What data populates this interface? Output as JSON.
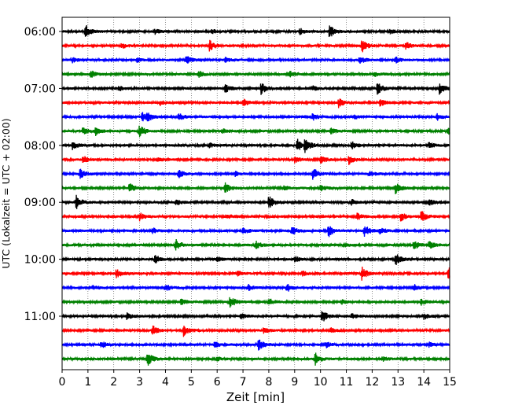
{
  "chart_data": {
    "type": "line",
    "title": "",
    "xlabel": "Zeit  [min]",
    "ylabel": "UTC (Lokalzeit = UTC + 02:00)",
    "xlim": [
      0,
      15
    ],
    "xticks": [
      "0",
      "1",
      "2",
      "3",
      "4",
      "5",
      "6",
      "7",
      "8",
      "9",
      "10",
      "11",
      "12",
      "13",
      "14",
      "15"
    ],
    "yticks": [
      "06:00",
      "07:00",
      "08:00",
      "09:00",
      "10:00",
      "11:00"
    ],
    "grid": "vertical dotted",
    "trace_colors": [
      "#000000",
      "#ff0000",
      "#0000ff",
      "#008000"
    ],
    "traces": [
      {
        "time": "06:00",
        "events": [
          [
            0.9,
            1.0
          ],
          [
            10.35,
            0.9
          ],
          [
            3.6,
            0.3
          ],
          [
            5.8,
            0.3
          ],
          [
            9.2,
            0.4
          ],
          [
            12.7,
            0.3
          ]
        ]
      },
      {
        "time": "06:15",
        "events": [
          [
            5.7,
            0.8
          ],
          [
            11.6,
            0.9
          ],
          [
            2.3,
            0.4
          ],
          [
            13.3,
            0.5
          ]
        ]
      },
      {
        "time": "06:30",
        "events": [
          [
            4.8,
            0.6
          ],
          [
            11.5,
            0.6
          ],
          [
            0.4,
            0.35
          ],
          [
            2.9,
            0.3
          ],
          [
            6.3,
            0.3
          ],
          [
            12.9,
            0.4
          ]
        ]
      },
      {
        "time": "06:45",
        "events": [
          [
            1.1,
            0.5
          ],
          [
            5.3,
            0.4
          ],
          [
            8.8,
            0.4
          ],
          [
            12.1,
            0.3
          ]
        ]
      },
      {
        "time": "07:00",
        "events": [
          [
            6.3,
            0.6
          ],
          [
            7.7,
            0.8
          ],
          [
            12.2,
            0.9
          ],
          [
            14.6,
            0.8
          ],
          [
            9.7,
            0.3
          ],
          [
            2.2,
            0.3
          ]
        ]
      },
      {
        "time": "07:15",
        "events": [
          [
            7.0,
            0.5
          ],
          [
            10.7,
            0.6
          ],
          [
            12.3,
            0.5
          ],
          [
            3.8,
            0.3
          ]
        ]
      },
      {
        "time": "07:30",
        "events": [
          [
            3.1,
            0.6
          ],
          [
            3.3,
            0.5
          ],
          [
            4.5,
            0.6
          ],
          [
            9.7,
            0.5
          ],
          [
            14.5,
            0.5
          ],
          [
            11.3,
            0.3
          ]
        ]
      },
      {
        "time": "07:45",
        "events": [
          [
            0.8,
            0.5
          ],
          [
            1.3,
            0.5
          ],
          [
            3.0,
            0.9
          ],
          [
            10.4,
            0.4
          ],
          [
            14.9,
            0.5
          ],
          [
            6.2,
            0.3
          ]
        ]
      },
      {
        "time": "08:00",
        "events": [
          [
            0.4,
            0.6
          ],
          [
            9.1,
            0.9
          ],
          [
            9.4,
            0.9
          ],
          [
            11.2,
            0.5
          ],
          [
            14.2,
            0.4
          ],
          [
            5.7,
            0.3
          ]
        ]
      },
      {
        "time": "08:15",
        "events": [
          [
            0.8,
            0.5
          ],
          [
            9.0,
            0.4
          ],
          [
            10.0,
            0.6
          ],
          [
            11.1,
            0.6
          ],
          [
            3.7,
            0.3
          ]
        ]
      },
      {
        "time": "08:30",
        "events": [
          [
            0.7,
            0.7
          ],
          [
            4.5,
            0.6
          ],
          [
            9.7,
            0.9
          ],
          [
            11.9,
            0.4
          ],
          [
            6.7,
            0.3
          ]
        ]
      },
      {
        "time": "08:45",
        "events": [
          [
            2.6,
            0.7
          ],
          [
            6.3,
            0.7
          ],
          [
            10.0,
            0.4
          ],
          [
            12.9,
            0.8
          ],
          [
            8.6,
            0.3
          ]
        ]
      },
      {
        "time": "09:00",
        "events": [
          [
            0.55,
            0.9
          ],
          [
            8.0,
            0.9
          ],
          [
            14.2,
            0.5
          ],
          [
            4.4,
            0.4
          ],
          [
            11.2,
            0.4
          ]
        ]
      },
      {
        "time": "09:15",
        "events": [
          [
            3.0,
            0.5
          ],
          [
            11.4,
            0.5
          ],
          [
            13.1,
            0.6
          ],
          [
            13.9,
            0.8
          ],
          [
            6.4,
            0.3
          ]
        ]
      },
      {
        "time": "09:30",
        "events": [
          [
            7.0,
            0.5
          ],
          [
            8.9,
            0.6
          ],
          [
            10.3,
            0.9
          ],
          [
            11.7,
            0.8
          ],
          [
            12.3,
            0.5
          ],
          [
            3.5,
            0.4
          ]
        ]
      },
      {
        "time": "09:45",
        "events": [
          [
            4.4,
            0.8
          ],
          [
            7.5,
            0.5
          ],
          [
            13.6,
            0.7
          ],
          [
            14.2,
            0.5
          ],
          [
            10.9,
            0.3
          ]
        ]
      },
      {
        "time": "10:00",
        "events": [
          [
            3.6,
            0.6
          ],
          [
            12.9,
            0.9
          ],
          [
            9.0,
            0.4
          ],
          [
            6.0,
            0.3
          ]
        ]
      },
      {
        "time": "10:15",
        "events": [
          [
            2.1,
            0.6
          ],
          [
            11.6,
            0.9
          ],
          [
            14.95,
            1.0
          ],
          [
            6.8,
            0.3
          ],
          [
            9.3,
            0.3
          ]
        ]
      },
      {
        "time": "10:30",
        "events": [
          [
            4.0,
            0.5
          ],
          [
            7.2,
            0.4
          ],
          [
            8.7,
            0.6
          ],
          [
            13.6,
            0.5
          ],
          [
            1.2,
            0.3
          ]
        ]
      },
      {
        "time": "10:45",
        "events": [
          [
            6.5,
            0.8
          ],
          [
            8.0,
            0.5
          ],
          [
            4.6,
            0.4
          ],
          [
            13.9,
            0.4
          ],
          [
            10.8,
            0.3
          ]
        ]
      },
      {
        "time": "11:00",
        "events": [
          [
            10.05,
            0.9
          ],
          [
            2.5,
            0.4
          ],
          [
            6.9,
            0.4
          ],
          [
            14.0,
            0.4
          ],
          [
            11.2,
            0.3
          ]
        ]
      },
      {
        "time": "11:15",
        "events": [
          [
            3.5,
            0.7
          ],
          [
            4.7,
            0.8
          ],
          [
            7.8,
            0.4
          ],
          [
            10.4,
            0.3
          ]
        ]
      },
      {
        "time": "11:30",
        "events": [
          [
            1.5,
            0.5
          ],
          [
            7.6,
            0.8
          ],
          [
            5.9,
            0.4
          ],
          [
            10.2,
            0.4
          ],
          [
            14.2,
            0.3
          ]
        ]
      },
      {
        "time": "11:45",
        "events": [
          [
            3.3,
            1.0
          ],
          [
            9.8,
            0.8
          ],
          [
            6.0,
            0.3
          ],
          [
            12.4,
            0.3
          ]
        ]
      }
    ]
  }
}
